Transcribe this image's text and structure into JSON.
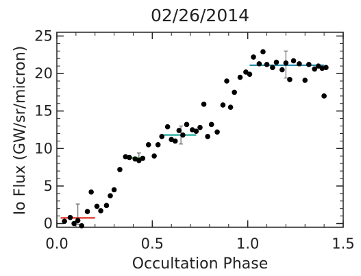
{
  "chart_data": {
    "type": "scatter",
    "title": "02/26/2014",
    "xlabel": "Occultation Phase",
    "ylabel": "Io Flux (GW/sr/micron)",
    "xlim": [
      0.0,
      1.5
    ],
    "ylim": [
      -0.5,
      25.5
    ],
    "xticks": [
      "0.0",
      "0.5",
      "1.0",
      "1.5"
    ],
    "yticks": [
      "0",
      "5",
      "10",
      "15",
      "20",
      "25"
    ],
    "grid": false,
    "colors": {
      "points": "#000000",
      "errorbar": "#666666"
    },
    "points": [
      {
        "x": 0.04,
        "y": 0.3
      },
      {
        "x": 0.07,
        "y": 0.8
      },
      {
        "x": 0.09,
        "y": 0.0
      },
      {
        "x": 0.11,
        "y": 0.4
      },
      {
        "x": 0.13,
        "y": -0.3
      },
      {
        "x": 0.16,
        "y": 1.6
      },
      {
        "x": 0.18,
        "y": 4.2
      },
      {
        "x": 0.21,
        "y": 2.3
      },
      {
        "x": 0.23,
        "y": 1.7
      },
      {
        "x": 0.26,
        "y": 2.4
      },
      {
        "x": 0.28,
        "y": 3.7
      },
      {
        "x": 0.3,
        "y": 4.5
      },
      {
        "x": 0.33,
        "y": 7.2
      },
      {
        "x": 0.36,
        "y": 8.9
      },
      {
        "x": 0.38,
        "y": 8.8
      },
      {
        "x": 0.41,
        "y": 8.6
      },
      {
        "x": 0.43,
        "y": 8.4
      },
      {
        "x": 0.45,
        "y": 8.7
      },
      {
        "x": 0.48,
        "y": 10.5
      },
      {
        "x": 0.51,
        "y": 9.0
      },
      {
        "x": 0.53,
        "y": 10.5
      },
      {
        "x": 0.55,
        "y": 11.6
      },
      {
        "x": 0.58,
        "y": 12.9
      },
      {
        "x": 0.6,
        "y": 11.2
      },
      {
        "x": 0.62,
        "y": 11.0
      },
      {
        "x": 0.64,
        "y": 12.4
      },
      {
        "x": 0.66,
        "y": 11.8
      },
      {
        "x": 0.68,
        "y": 13.2
      },
      {
        "x": 0.71,
        "y": 12.5
      },
      {
        "x": 0.73,
        "y": 12.3
      },
      {
        "x": 0.75,
        "y": 12.8
      },
      {
        "x": 0.77,
        "y": 15.9
      },
      {
        "x": 0.79,
        "y": 11.6
      },
      {
        "x": 0.81,
        "y": 13.2
      },
      {
        "x": 0.84,
        "y": 12.2
      },
      {
        "x": 0.87,
        "y": 15.8
      },
      {
        "x": 0.89,
        "y": 19.0
      },
      {
        "x": 0.91,
        "y": 15.5
      },
      {
        "x": 0.93,
        "y": 17.5
      },
      {
        "x": 0.96,
        "y": 19.5
      },
      {
        "x": 0.99,
        "y": 20.2
      },
      {
        "x": 1.01,
        "y": 19.9
      },
      {
        "x": 1.03,
        "y": 22.2
      },
      {
        "x": 1.06,
        "y": 21.3
      },
      {
        "x": 1.08,
        "y": 22.9
      },
      {
        "x": 1.1,
        "y": 21.2
      },
      {
        "x": 1.13,
        "y": 20.8
      },
      {
        "x": 1.15,
        "y": 21.5
      },
      {
        "x": 1.18,
        "y": 20.5
      },
      {
        "x": 1.2,
        "y": 21.4
      },
      {
        "x": 1.22,
        "y": 19.2
      },
      {
        "x": 1.24,
        "y": 21.7
      },
      {
        "x": 1.27,
        "y": 21.3
      },
      {
        "x": 1.3,
        "y": 19.1
      },
      {
        "x": 1.32,
        "y": 21.2
      },
      {
        "x": 1.35,
        "y": 20.6
      },
      {
        "x": 1.37,
        "y": 21.0
      },
      {
        "x": 1.39,
        "y": 20.7
      },
      {
        "x": 1.41,
        "y": 20.8
      },
      {
        "x": 1.4,
        "y": 17.0
      }
    ],
    "segments": [
      {
        "x0": 0.02,
        "x1": 0.2,
        "y": 0.75,
        "color": "#e03020"
      },
      {
        "x0": 0.38,
        "x1": 0.46,
        "y": 8.75,
        "color": "#22c428"
      },
      {
        "x0": 0.56,
        "x1": 0.73,
        "y": 11.8,
        "color": "#22a898"
      },
      {
        "x0": 1.01,
        "x1": 1.4,
        "y": 21.1,
        "color": "#1f8aa8"
      }
    ],
    "errorbars": [
      {
        "x": 0.11,
        "y": 0.9,
        "low": -0.1,
        "high": 2.6
      },
      {
        "x": 0.43,
        "y": 8.8,
        "low": 8.2,
        "high": 9.4
      },
      {
        "x": 0.65,
        "y": 11.8,
        "low": 10.6,
        "high": 13.0
      },
      {
        "x": 1.2,
        "y": 21.2,
        "low": 19.4,
        "high": 23.0
      }
    ]
  }
}
